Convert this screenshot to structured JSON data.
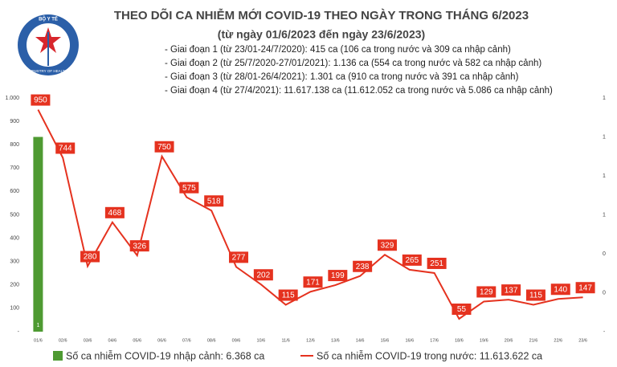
{
  "logo": {
    "top": "BỘ Y TẾ",
    "bottom": "MINISTRY OF HEALTH"
  },
  "chart_data": {
    "type": "bar-line",
    "title": "THEO DÕI CA NHIỄM MỚI COVID-19 THEO NGÀY TRONG THÁNG 6/2023",
    "subtitle": "(từ ngày 01/6/2023 đến ngày 23/6/2023)",
    "annotations": [
      "- Giai đoạn 1 (từ 23/01-24/7/2020): 415 ca (106 ca trong nước và 309 ca nhập cảnh)",
      "- Giai đoạn 2 (từ 25/7/2020-27/01/2021): 1.136 ca (554 ca trong nước và 582 ca nhập cảnh)",
      "- Giai đoạn 3 (từ 28/01-26/4/2021): 1.301 ca (910 ca trong nước và 391 ca nhập cảnh)",
      "- Giai đoạn 4 (từ 27/4/2021): 11.617.138 ca (11.612.052 ca trong nước và 5.086 ca nhập cảnh)"
    ],
    "categories": [
      "01/6",
      "02/6",
      "03/6",
      "04/6",
      "05/6",
      "06/6",
      "07/6",
      "08/6",
      "09/6",
      "10/6",
      "11/6",
      "12/6",
      "13/6",
      "14/6",
      "15/6",
      "16/6",
      "17/6",
      "18/6",
      "19/6",
      "20/6",
      "21/6",
      "22/6",
      "23/6"
    ],
    "series": [
      {
        "name": "Số ca nhiễm COVID-19 nhập cảnh: 6.368 ca",
        "kind": "bar",
        "axis": "y2",
        "color": "#4e9a32",
        "values": [
          1,
          0,
          0,
          0,
          0,
          0,
          0,
          0,
          0,
          0,
          0,
          0,
          0,
          0,
          0,
          0,
          0,
          0,
          0,
          0,
          0,
          0,
          0
        ],
        "value_labels": [
          "1",
          "-",
          "-",
          "-",
          "-",
          "-",
          "-",
          "-",
          "-",
          "-",
          "-",
          "-",
          "-",
          "-",
          "-",
          "-",
          "-",
          "-",
          "-",
          "-",
          "-",
          "-",
          "-"
        ]
      },
      {
        "name": "Số ca nhiễm COVID-19 trong nước: 11.613.622 ca",
        "kind": "line",
        "color": "#e5321f",
        "values": [
          950,
          744,
          280,
          468,
          326,
          750,
          575,
          518,
          277,
          202,
          115,
          171,
          199,
          238,
          329,
          265,
          251,
          55,
          129,
          137,
          115,
          140,
          147
        ]
      }
    ],
    "ylim": [
      0,
      1000
    ],
    "yticks": [
      {
        "value": 0,
        "label": "-"
      },
      100,
      200,
      300,
      400,
      500,
      600,
      700,
      800,
      900,
      {
        "value": 1000,
        "label": "1.000"
      }
    ],
    "y2lim": [
      0,
      1.2
    ],
    "y2ticks": [
      {
        "value": 0,
        "label": "-"
      },
      {
        "value": 0.2,
        "label": "0"
      },
      {
        "value": 0.4,
        "label": "0"
      },
      {
        "value": 0.6,
        "label": "1"
      },
      {
        "value": 0.8,
        "label": "1"
      },
      {
        "value": 1.0,
        "label": "1"
      },
      {
        "value": 1.2,
        "label": "1"
      }
    ],
    "grid": false
  }
}
